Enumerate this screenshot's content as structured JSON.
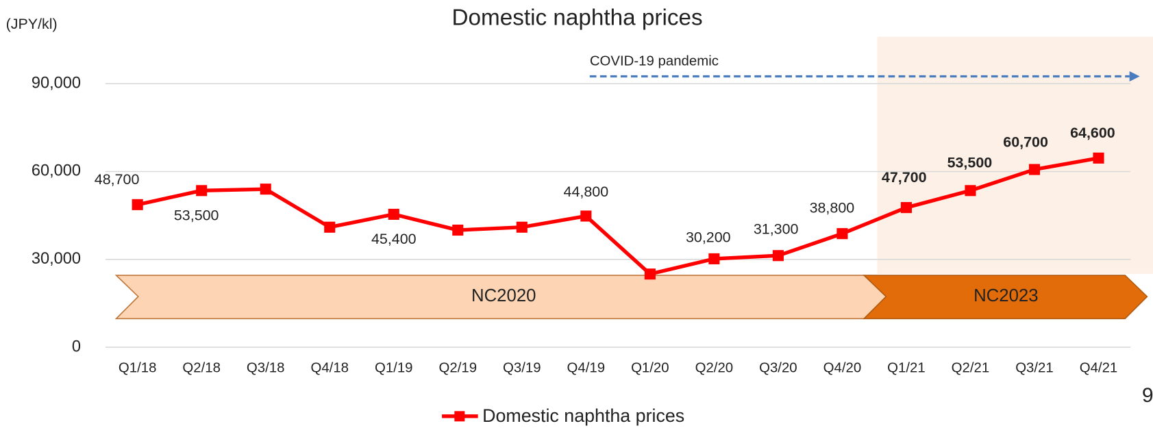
{
  "chart_data": {
    "type": "line",
    "title": "Domestic naphtha prices",
    "y_label": "(JPY/kl)",
    "categories": [
      "Q1/18",
      "Q2/18",
      "Q3/18",
      "Q4/18",
      "Q1/19",
      "Q2/19",
      "Q3/19",
      "Q4/19",
      "Q1/20",
      "Q2/20",
      "Q3/20",
      "Q4/20",
      "Q1/21",
      "Q2/21",
      "Q3/21",
      "Q4/21"
    ],
    "series": [
      {
        "name": "Domestic naphtha prices",
        "color": "#ff0000",
        "values": [
          48700,
          53500,
          54000,
          41000,
          45400,
          40000,
          41000,
          44800,
          25000,
          30200,
          31300,
          38800,
          47700,
          53500,
          60700,
          64600
        ],
        "value_labels": [
          "48,700",
          "53,500",
          null,
          null,
          "45,400",
          null,
          null,
          "44,800",
          null,
          "30,200",
          "31,300",
          "38,800",
          "47,700",
          "53,500",
          "60,700",
          "64,600"
        ]
      }
    ],
    "highlight_from": "Q1/21",
    "ylim": [
      0,
      90000
    ],
    "yticks": [
      0,
      {
        "value": 30000,
        "label": "30,000"
      },
      {
        "value": 60000,
        "label": "60,000"
      },
      {
        "value": 90000,
        "label": "90,000"
      }
    ],
    "grid": true,
    "annotation": "COVID-19 pandemic",
    "phases": [
      "NC2020",
      "NC2023"
    ],
    "page_number": "9",
    "legend": "bottom"
  }
}
